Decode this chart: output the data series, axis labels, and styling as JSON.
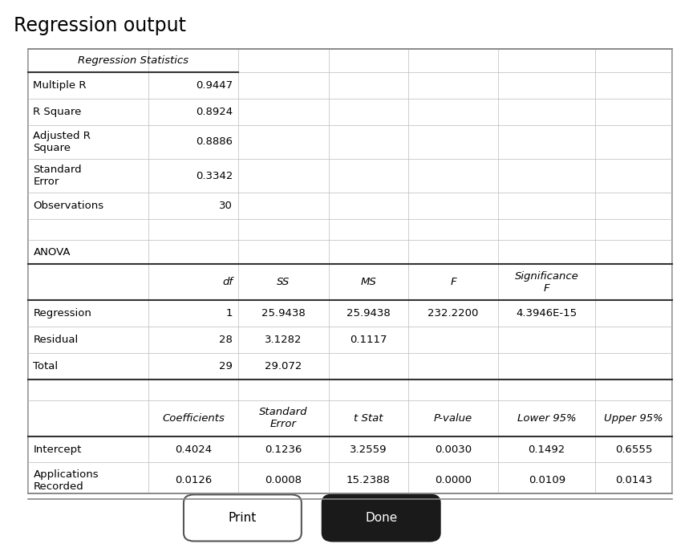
{
  "title": "Regression output",
  "background_color": "#ffffff",
  "reg_stats_header": "Regression Statistics",
  "reg_stats_rows": [
    [
      "Multiple R",
      "0.9447"
    ],
    [
      "R Square",
      "0.8924"
    ],
    [
      "Adjusted R\nSquare",
      "0.8886"
    ],
    [
      "Standard\nError",
      "0.3342"
    ],
    [
      "Observations",
      "30"
    ]
  ],
  "anova_label": "ANOVA",
  "anova_headers": [
    "df",
    "SS",
    "MS",
    "F",
    "Significance\nF"
  ],
  "anova_rows": [
    [
      "Regression",
      "1",
      "25.9438",
      "25.9438",
      "232.2200",
      "4.3946E-15"
    ],
    [
      "Residual",
      "28",
      "3.1282",
      "0.1117",
      "",
      ""
    ],
    [
      "Total",
      "29",
      "29.072",
      "",
      "",
      ""
    ]
  ],
  "coeff_headers": [
    "",
    "Coefficients",
    "Standard\nError",
    "t Stat",
    "P-value",
    "Lower 95%",
    "Upper 95%"
  ],
  "coeff_rows": [
    [
      "Intercept",
      "0.4024",
      "0.1236",
      "3.2559",
      "0.0030",
      "0.1492",
      "0.6555"
    ],
    [
      "Applications\nRecorded",
      "0.0126",
      "0.0008",
      "15.2388",
      "0.0000",
      "0.0109",
      "0.0143"
    ]
  ],
  "print_btn_text": "Print",
  "done_btn_text": "Done",
  "title_fontsize": 17,
  "body_fontsize": 9.5
}
